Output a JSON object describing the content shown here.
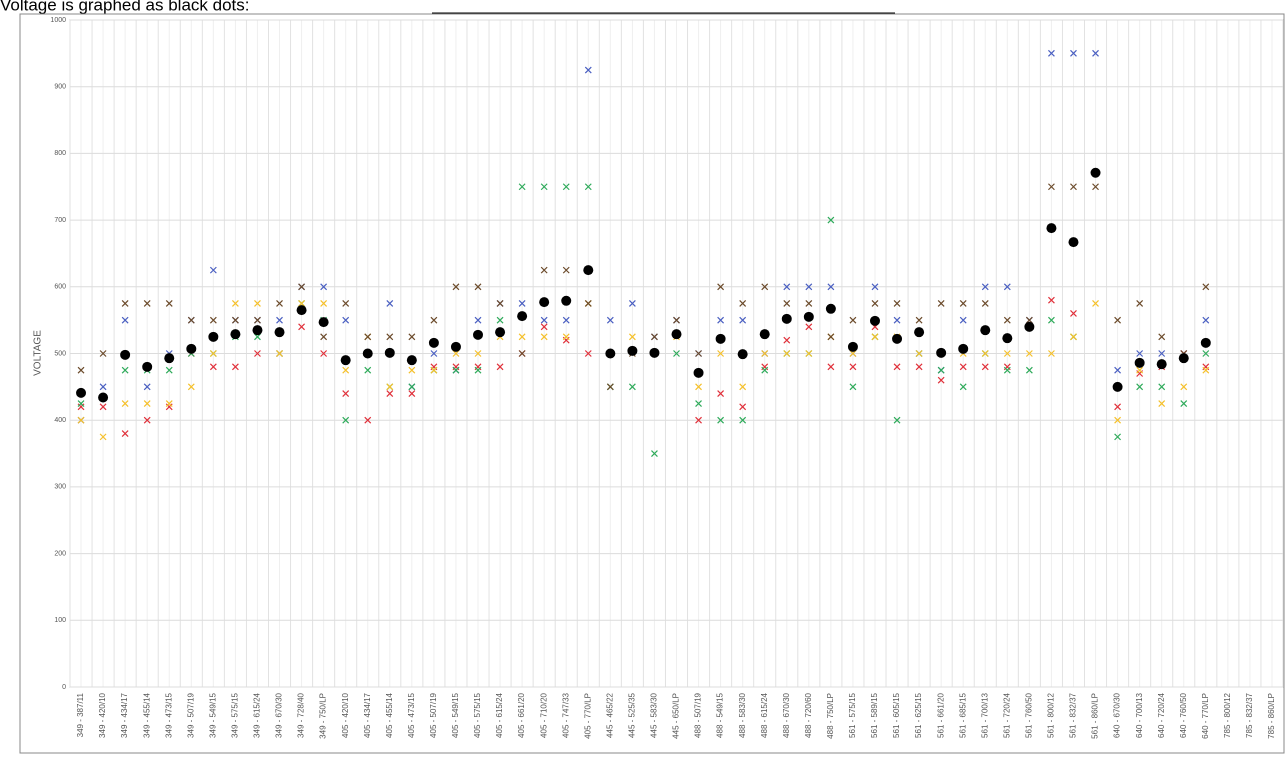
{
  "chart_data": {
    "type": "scatter",
    "title": "Voltage is graphed as black dots:",
    "y_label": "VOLTAGE",
    "categories": [
      "349 - 387/11",
      "349 - 420/10",
      "349 - 434/17",
      "349 - 455/14",
      "349 - 473/15",
      "349 - 507/19",
      "349 - 549/15",
      "349 - 575/15",
      "349 - 615/24",
      "349 - 670/30",
      "349 - 728/40",
      "349 - 750/LP",
      "405 - 420/10",
      "405 - 434/17",
      "405 - 455/14",
      "405 - 473/15",
      "405 - 507/19",
      "405 - 549/15",
      "405 - 575/15",
      "405 - 615/24",
      "405 - 661/20",
      "405 - 710/20",
      "405 - 747/33",
      "405 - 770/LP",
      "445 - 465/22",
      "445 - 525/35",
      "445 - 583/30",
      "445 - 650/LP",
      "488 - 507/19",
      "488 - 549/15",
      "488 - 583/30",
      "488 - 615/24",
      "488 - 670/30",
      "488 - 720/60",
      "488 - 750/LP",
      "561 - 575/15",
      "561 - 589/15",
      "561 - 605/15",
      "561 - 625/15",
      "561 - 661/20",
      "561 - 685/15",
      "561 - 700/13",
      "561 - 720/24",
      "561 - 760/50",
      "561 - 800/12",
      "561 - 832/37",
      "561 - 860/LP",
      "640 - 670/30",
      "640 - 700/13",
      "640 - 720/24",
      "640 - 760/50",
      "640 - 770/LP",
      "785 - 800/12",
      "785 - 832/37",
      "785 - 860/LP"
    ],
    "series": [
      {
        "color": "#4a5fc1",
        "marker": "x",
        "values": [
          400,
          450,
          550,
          450,
          500,
          550,
          625,
          550,
          550,
          550,
          600,
          600,
          550,
          500,
          575,
          450,
          500,
          475,
          550,
          575,
          575,
          550,
          550,
          925,
          550,
          575,
          525,
          550,
          500,
          550,
          550,
          500,
          600,
          600,
          600,
          500,
          600,
          550,
          500,
          475,
          550,
          600,
          600,
          550,
          950,
          950,
          950,
          475,
          500,
          500,
          500,
          550,
          null,
          null,
          null
        ]
      },
      {
        "color": "#e0303a",
        "marker": "x",
        "values": [
          420,
          420,
          380,
          400,
          420,
          500,
          480,
          480,
          500,
          500,
          540,
          500,
          440,
          400,
          440,
          440,
          480,
          480,
          480,
          480,
          500,
          540,
          520,
          500,
          null,
          null,
          null,
          null,
          400,
          440,
          420,
          480,
          520,
          540,
          480,
          480,
          540,
          480,
          480,
          460,
          480,
          480,
          480,
          null,
          580,
          560,
          null,
          420,
          470,
          480,
          500,
          480,
          null,
          null,
          null
        ]
      },
      {
        "color": "#2eaa5a",
        "marker": "x",
        "values": [
          425,
          null,
          475,
          475,
          475,
          500,
          500,
          525,
          525,
          500,
          575,
          550,
          400,
          475,
          450,
          450,
          475,
          475,
          475,
          550,
          750,
          750,
          750,
          750,
          450,
          450,
          350,
          500,
          425,
          400,
          400,
          475,
          500,
          500,
          700,
          450,
          525,
          400,
          500,
          475,
          450,
          500,
          475,
          475,
          550,
          525,
          null,
          375,
          450,
          450,
          425,
          500,
          null,
          null,
          null
        ]
      },
      {
        "color": "#f5c02a",
        "marker": "x",
        "values": [
          400,
          375,
          425,
          425,
          425,
          450,
          500,
          575,
          575,
          500,
          575,
          575,
          475,
          525,
          450,
          475,
          475,
          500,
          500,
          525,
          525,
          525,
          525,
          575,
          null,
          525,
          500,
          525,
          450,
          500,
          450,
          500,
          500,
          500,
          525,
          500,
          525,
          525,
          500,
          500,
          500,
          500,
          500,
          500,
          500,
          525,
          575,
          400,
          475,
          425,
          450,
          475,
          null,
          null,
          null
        ]
      },
      {
        "color": "#6b4a2a",
        "marker": "x",
        "values": [
          475,
          500,
          575,
          575,
          575,
          550,
          550,
          550,
          550,
          575,
          600,
          525,
          575,
          525,
          525,
          525,
          550,
          600,
          600,
          575,
          500,
          625,
          625,
          575,
          450,
          500,
          525,
          550,
          500,
          600,
          575,
          600,
          575,
          575,
          525,
          550,
          575,
          575,
          550,
          575,
          575,
          575,
          550,
          550,
          750,
          750,
          750,
          550,
          575,
          525,
          500,
          600,
          null,
          null,
          null
        ]
      },
      {
        "color": "#000000",
        "marker": "dot",
        "values": [
          441,
          434,
          498,
          480,
          493,
          507,
          525,
          529,
          535,
          532,
          565,
          547,
          490,
          500,
          501,
          490,
          516,
          510,
          528,
          532,
          556,
          577,
          579,
          625,
          500,
          504,
          501,
          529,
          471,
          522,
          499,
          529,
          552,
          555,
          567,
          510,
          549,
          522,
          532,
          501,
          507,
          535,
          523,
          540,
          688,
          667,
          771,
          450,
          486,
          484,
          493,
          516,
          null,
          null,
          null
        ]
      }
    ],
    "ylim": [
      0,
      1000
    ],
    "yticks": [
      0,
      100,
      200,
      300,
      400,
      500,
      600,
      700,
      800,
      900,
      1000
    ],
    "grid": true
  }
}
